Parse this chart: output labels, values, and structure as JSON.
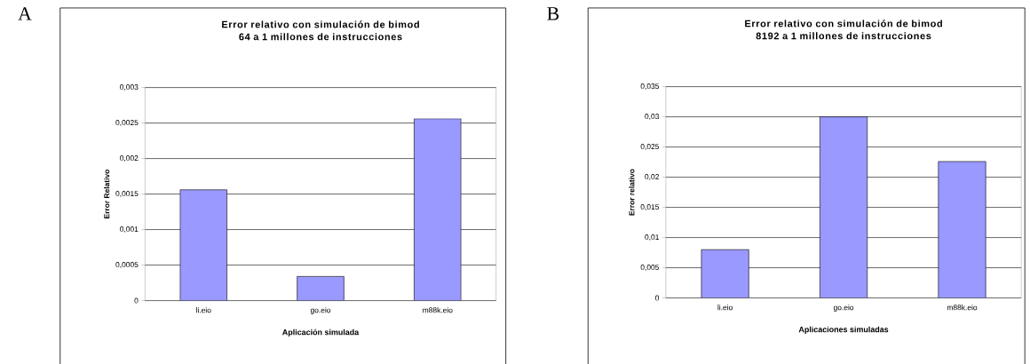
{
  "chart_data": [
    {
      "type": "bar",
      "title": "Error relativo con simulación de bimod 64 a 1 millones de instrucciones",
      "xlabel": "Aplicación simulada",
      "ylabel": "Error Relativo",
      "categories": [
        "li.eio",
        "go.eio",
        "m88k.eio"
      ],
      "values": [
        0.00156,
        0.00034,
        0.00256
      ],
      "color": "#9999ff",
      "ylim": [
        0,
        0.003
      ],
      "yticks": [
        0,
        {
          "value": 0.0005,
          "label": "0,0005"
        },
        {
          "value": 0.001,
          "label": "0,001"
        },
        {
          "value": 0.0015,
          "label": "0,0015"
        },
        {
          "value": 0.002,
          "label": "0,002"
        },
        {
          "value": 0.0025,
          "label": "0,0025"
        },
        {
          "value": 0.003,
          "label": "0,003"
        }
      ],
      "grid": "y",
      "annotations": [
        "A"
      ]
    },
    {
      "type": "bar",
      "title": "Error relativo con simulación de bimod 8192 a 1 millones de instrucciones",
      "xlabel": "Aplicaciones simuladas",
      "ylabel": "Error relativo",
      "categories": [
        "li.eio",
        "go.eio",
        "m88k.eio"
      ],
      "values": [
        0.008,
        0.03,
        0.0226
      ],
      "color": "#9999ff",
      "ylim": [
        0,
        0.035
      ],
      "yticks": [
        0,
        {
          "value": 0.005,
          "label": "0,005"
        },
        {
          "value": 0.01,
          "label": "0,01"
        },
        {
          "value": 0.015,
          "label": "0,015"
        },
        {
          "value": 0.02,
          "label": "0,02"
        },
        {
          "value": 0.025,
          "label": "0,025"
        },
        {
          "value": 0.03,
          "label": "0,03"
        },
        {
          "value": 0.035,
          "label": "0,035"
        }
      ],
      "grid": "y",
      "annotations": [
        "B"
      ]
    }
  ]
}
